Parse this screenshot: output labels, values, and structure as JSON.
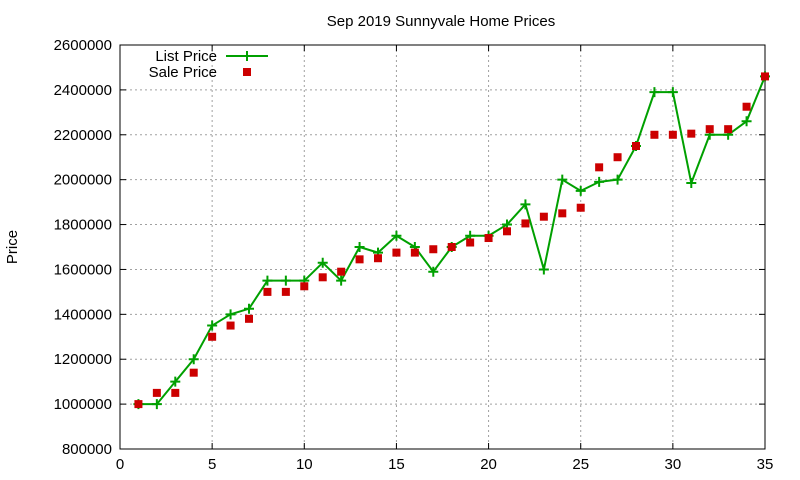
{
  "chart_data": {
    "type": "line",
    "title": "Sep 2019 Sunnyvale Home Prices",
    "xlabel": "",
    "ylabel": "Price",
    "xlim": [
      0,
      35
    ],
    "ylim": [
      800000,
      2600000
    ],
    "x_ticks": [
      0,
      5,
      10,
      15,
      20,
      25,
      30,
      35
    ],
    "y_ticks": [
      800000,
      1000000,
      1200000,
      1400000,
      1600000,
      1800000,
      2000000,
      2200000,
      2400000,
      2600000
    ],
    "grid": true,
    "legend_position": "top-left",
    "series": [
      {
        "name": "List Price",
        "style": "line-with-plus-markers",
        "color": "#00a000",
        "x": [
          1,
          2,
          3,
          4,
          5,
          6,
          7,
          8,
          9,
          10,
          11,
          12,
          13,
          14,
          15,
          16,
          17,
          18,
          19,
          20,
          21,
          22,
          23,
          24,
          25,
          26,
          27,
          28,
          29,
          30,
          31,
          32,
          33,
          34,
          35
        ],
        "values": [
          1000000,
          1000000,
          1100000,
          1200000,
          1350000,
          1400000,
          1425000,
          1550000,
          1550000,
          1550000,
          1630000,
          1550000,
          1700000,
          1675000,
          1750000,
          1700000,
          1590000,
          1700000,
          1750000,
          1750000,
          1800000,
          1890000,
          1600000,
          2000000,
          1950000,
          1990000,
          2000000,
          2150000,
          2390000,
          2390000,
          1985000,
          2200000,
          2200000,
          2260000,
          2460000
        ]
      },
      {
        "name": "Sale Price",
        "style": "square-markers",
        "color": "#cc0000",
        "x": [
          1,
          2,
          3,
          4,
          5,
          6,
          7,
          8,
          9,
          10,
          11,
          12,
          13,
          14,
          15,
          16,
          17,
          18,
          19,
          20,
          21,
          22,
          23,
          24,
          25,
          26,
          27,
          28,
          29,
          30,
          31,
          32,
          33,
          34,
          35
        ],
        "values": [
          1000000,
          1050000,
          1050000,
          1140000,
          1300000,
          1350000,
          1380000,
          1500000,
          1500000,
          1525000,
          1565000,
          1590000,
          1645000,
          1650000,
          1675000,
          1675000,
          1690000,
          1700000,
          1720000,
          1740000,
          1770000,
          1805000,
          1835000,
          1850000,
          1875000,
          2055000,
          2100000,
          2150000,
          2200000,
          2200000,
          2205000,
          2225000,
          2225000,
          2325000,
          2460000
        ]
      }
    ]
  }
}
